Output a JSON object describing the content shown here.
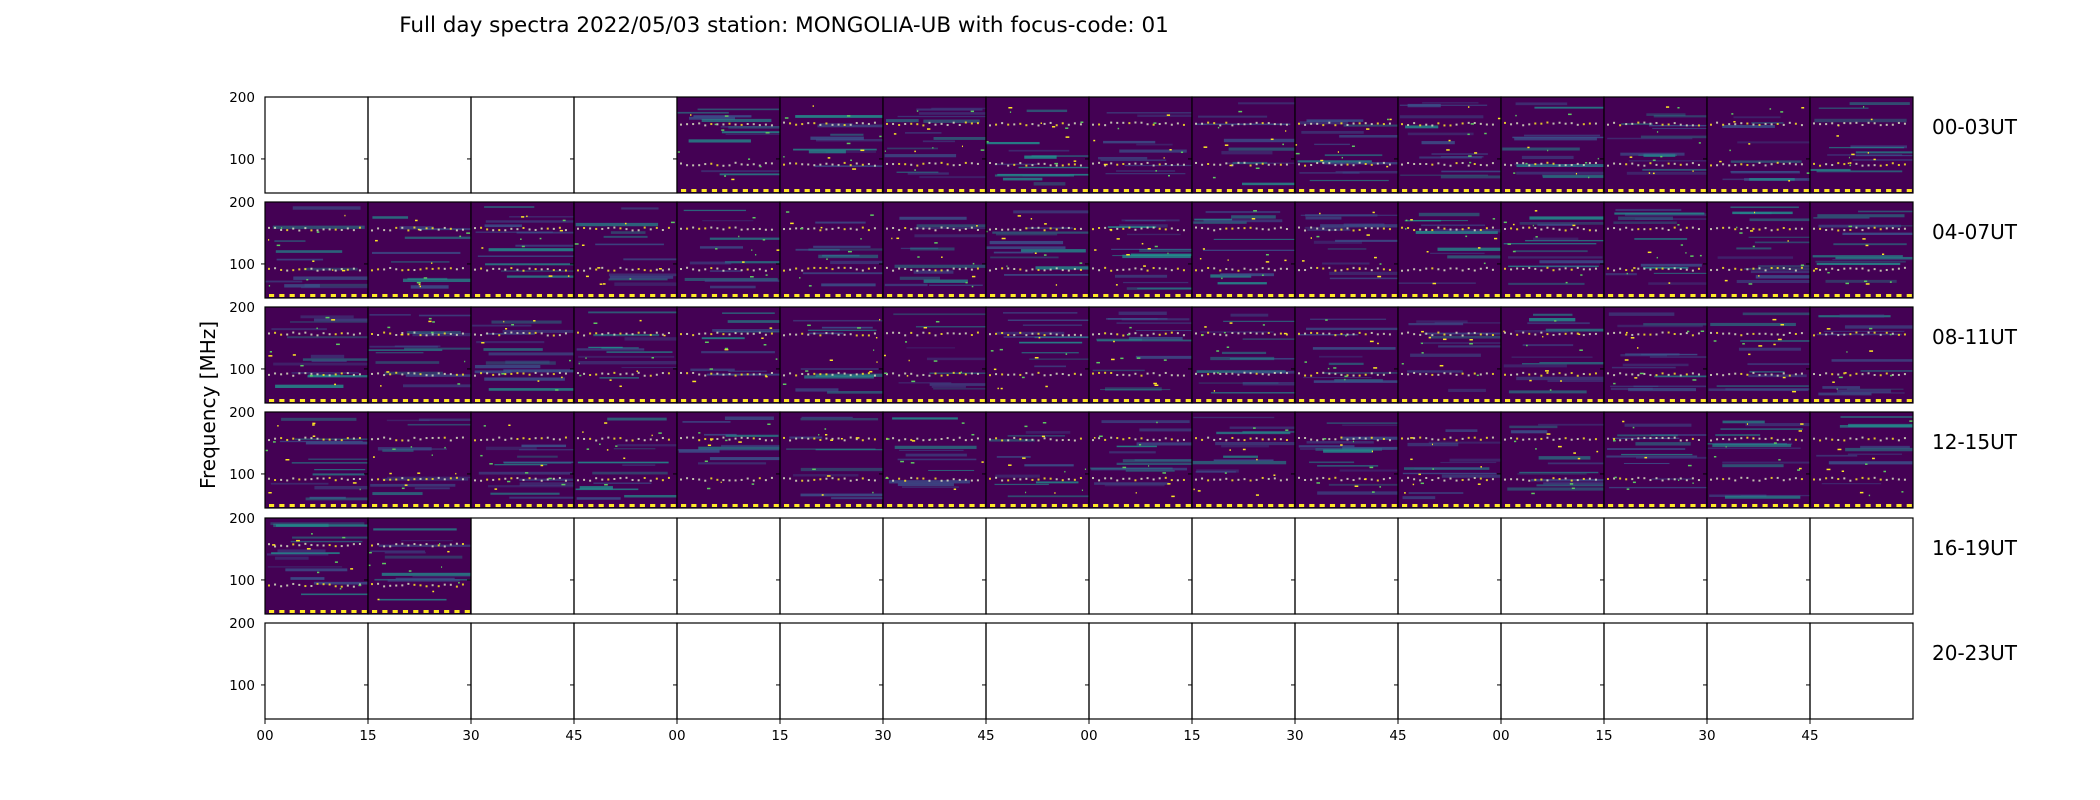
{
  "chart_data": {
    "type": "heatmap",
    "title": "Full day spectra 2022/05/03 station: MONGOLIA-UB with focus-code: 01",
    "ylabel": "Frequency [MHz]",
    "ylim": [
      45,
      200
    ],
    "yticks": [
      100,
      200
    ],
    "xticks": [
      "00",
      "15",
      "30",
      "45",
      "00",
      "15",
      "30",
      "45",
      "00",
      "15",
      "30",
      "45",
      "00",
      "15",
      "30",
      "45"
    ],
    "colormap": "viridis",
    "rows": [
      {
        "label": "00-03UT",
        "data_panels": [
          4,
          5,
          6,
          7,
          8,
          9,
          10,
          11,
          12,
          13,
          14,
          15
        ]
      },
      {
        "label": "04-07UT",
        "data_panels": [
          0,
          1,
          2,
          3,
          4,
          5,
          6,
          7,
          8,
          9,
          10,
          11,
          12,
          13,
          14,
          15
        ]
      },
      {
        "label": "08-11UT",
        "data_panels": [
          0,
          1,
          2,
          3,
          4,
          5,
          6,
          7,
          8,
          9,
          10,
          11,
          12,
          13,
          14,
          15
        ]
      },
      {
        "label": "12-15UT",
        "data_panels": [
          0,
          1,
          2,
          3,
          4,
          5,
          6,
          7,
          8,
          9,
          10,
          11,
          12,
          13,
          14,
          15
        ]
      },
      {
        "label": "16-19UT",
        "data_panels": [
          0,
          1
        ]
      },
      {
        "label": "20-23UT",
        "data_panels": []
      }
    ],
    "colors": {
      "background": "#440154",
      "mid": "#3b528b",
      "band": "#21908d",
      "bright": "#5ec962",
      "peak": "#fde725"
    }
  }
}
